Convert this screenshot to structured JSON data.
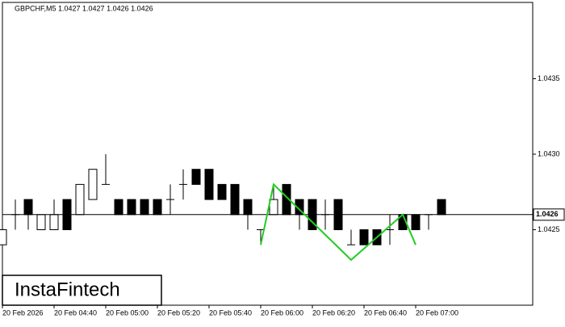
{
  "chart_data": {
    "type": "candlestick",
    "header": "GBPCHF,M5  1.0427 1.0427 1.0426 1.0426",
    "logo": "InstaFintech",
    "categories": [
      "20 Feb 2026",
      null,
      null,
      null,
      "20 Feb 04:40",
      null,
      null,
      null,
      "20 Feb 05:00",
      null,
      null,
      null,
      "20 Feb 05:20",
      null,
      null,
      null,
      "20 Feb 05:40",
      null,
      null,
      null,
      "20 Feb 06:00",
      null,
      null,
      null,
      "20 Feb 06:20",
      null,
      null,
      null,
      "20 Feb 06:40",
      null,
      null,
      null,
      "20 Feb 07:00",
      null,
      null
    ],
    "open": [
      1.0424,
      1.0426,
      1.0427,
      1.0425,
      1.0425,
      1.0427,
      1.0426,
      1.0427,
      1.0428,
      1.0427,
      1.0427,
      1.0427,
      1.0427,
      1.0427,
      1.0428,
      1.0429,
      1.0429,
      1.0428,
      1.0428,
      1.0427,
      1.0425,
      1.0426,
      1.0428,
      1.0427,
      1.0427,
      1.0426,
      1.0427,
      1.0424,
      1.0425,
      1.0425,
      1.0425,
      1.0426,
      1.0426,
      1.0426,
      1.0427
    ],
    "high": [
      1.0425,
      1.0427,
      1.0427,
      1.0426,
      1.0427,
      1.0427,
      1.0428,
      1.0429,
      1.043,
      1.0427,
      1.0427,
      1.0427,
      1.0427,
      1.0428,
      1.0429,
      1.0429,
      1.0429,
      1.0428,
      1.0428,
      1.0427,
      1.0425,
      1.0428,
      1.0428,
      1.0427,
      1.0427,
      1.0427,
      1.0427,
      1.0425,
      1.0425,
      1.0425,
      1.0426,
      1.0426,
      1.0426,
      1.0426,
      1.0427
    ],
    "low": [
      1.0424,
      1.0425,
      1.0425,
      1.0425,
      1.0425,
      1.0425,
      1.0426,
      1.0427,
      1.0428,
      1.0426,
      1.0426,
      1.0426,
      1.0426,
      1.0426,
      1.0427,
      1.0428,
      1.0427,
      1.0427,
      1.0426,
      1.0425,
      1.0424,
      1.0426,
      1.0426,
      1.0425,
      1.0425,
      1.0425,
      1.0425,
      1.0424,
      1.0424,
      1.0424,
      1.0424,
      1.0425,
      1.0425,
      1.0425,
      1.0426
    ],
    "close": [
      1.0425,
      1.0426,
      1.0426,
      1.0426,
      1.0426,
      1.0425,
      1.0428,
      1.0429,
      1.0428,
      1.0426,
      1.0426,
      1.0426,
      1.0426,
      1.0427,
      1.0428,
      1.0428,
      1.0427,
      1.0427,
      1.0426,
      1.0426,
      1.0425,
      1.0427,
      1.0426,
      1.0426,
      1.0425,
      1.0426,
      1.0425,
      1.0424,
      1.0424,
      1.0424,
      1.0425,
      1.0425,
      1.0425,
      1.0426,
      1.0426
    ],
    "pattern": {
      "color": "#22cc22",
      "x": [
        20,
        21,
        27,
        31,
        32
      ],
      "values": [
        1.0424,
        1.0428,
        1.0423,
        1.0426,
        1.0424
      ]
    },
    "last_price": 1.0426,
    "ylim": [
      1.042,
      1.044
    ],
    "yticks": [
      1.0425,
      {
        "value": 1.043,
        "label": "1.0430"
      },
      1.0435
    ]
  }
}
